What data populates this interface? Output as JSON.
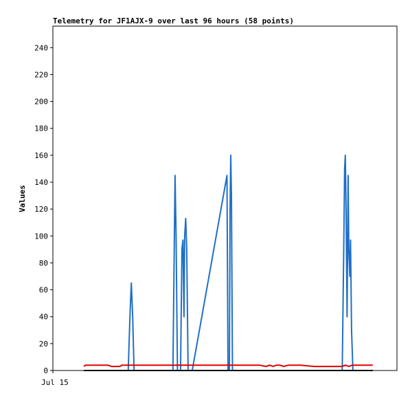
{
  "chart_data": {
    "type": "line",
    "title": "Telemetry for JF1AJX-9 over last 96 hours (58 points)",
    "xlabel": "",
    "ylabel": "Values",
    "x_tick_labels": [
      "Jul 15"
    ],
    "y_ticks": [
      0,
      20,
      40,
      60,
      80,
      100,
      120,
      140,
      160,
      180,
      200,
      220,
      240
    ],
    "xlim": [
      0,
      100
    ],
    "ylim": [
      0,
      256
    ],
    "grid": false,
    "legend": "none",
    "series": [
      {
        "color": "#1f6fc5",
        "points": [
          [
            20.9,
            0
          ],
          [
            21.9,
            0
          ],
          [
            22.4,
            40
          ],
          [
            22.8,
            65
          ],
          [
            23.2,
            40
          ],
          [
            23.6,
            0
          ],
          [
            24.5,
            0
          ],
          [
            34.9,
            0
          ],
          [
            35.3,
            100
          ],
          [
            35.5,
            145
          ],
          [
            35.8,
            100
          ],
          [
            36.2,
            0
          ],
          [
            37.1,
            0
          ],
          [
            37.5,
            90
          ],
          [
            37.8,
            97
          ],
          [
            38.1,
            40
          ],
          [
            38.3,
            100
          ],
          [
            38.6,
            113
          ],
          [
            38.9,
            90
          ],
          [
            39.3,
            0
          ],
          [
            40.5,
            0
          ],
          [
            50.6,
            145
          ],
          [
            50.9,
            0
          ],
          [
            51.3,
            0
          ],
          [
            51.5,
            120
          ],
          [
            51.7,
            160
          ],
          [
            51.9,
            130
          ],
          [
            52.2,
            0
          ],
          [
            84.1,
            0
          ],
          [
            84.5,
            80
          ],
          [
            84.8,
            150
          ],
          [
            85.0,
            160
          ],
          [
            85.2,
            120
          ],
          [
            85.5,
            40
          ],
          [
            85.8,
            145
          ],
          [
            86.0,
            90
          ],
          [
            86.3,
            70
          ],
          [
            86.5,
            97
          ],
          [
            86.8,
            30
          ],
          [
            87.2,
            0
          ],
          [
            88.6,
            0
          ]
        ]
      },
      {
        "color": "#e00000",
        "points": [
          [
            9.0,
            3
          ],
          [
            9.5,
            4
          ],
          [
            10.0,
            4
          ],
          [
            16.0,
            4
          ],
          [
            17.0,
            3
          ],
          [
            19.5,
            3
          ],
          [
            20.0,
            4
          ],
          [
            22.0,
            4
          ],
          [
            22.5,
            4
          ],
          [
            27.0,
            4
          ],
          [
            30.0,
            4
          ],
          [
            40.0,
            4
          ],
          [
            50.0,
            4
          ],
          [
            60.0,
            4
          ],
          [
            62.0,
            3
          ],
          [
            63.0,
            4
          ],
          [
            64.0,
            3
          ],
          [
            65.0,
            4
          ],
          [
            66.0,
            4
          ],
          [
            67.0,
            3
          ],
          [
            68.5,
            4
          ],
          [
            70.0,
            4
          ],
          [
            72.0,
            4
          ],
          [
            76.0,
            3
          ],
          [
            78.0,
            3
          ],
          [
            84.0,
            3
          ],
          [
            85.0,
            4
          ],
          [
            86.0,
            3
          ],
          [
            87.0,
            4
          ],
          [
            89.0,
            4
          ],
          [
            91.0,
            4
          ],
          [
            93.0,
            4
          ]
        ]
      },
      {
        "color": "#000000",
        "points": [
          [
            9.0,
            0
          ],
          [
            93.0,
            0
          ]
        ]
      }
    ]
  }
}
